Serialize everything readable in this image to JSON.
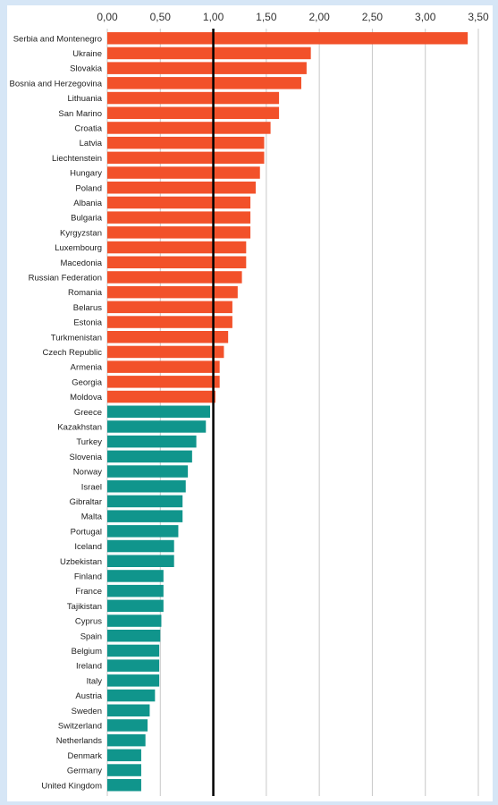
{
  "chart_data": {
    "type": "bar",
    "orientation": "horizontal",
    "title": "",
    "xlabel": "",
    "ylabel": "",
    "xlim": [
      0,
      3.5
    ],
    "x_ticks": [
      "0,00",
      "0,50",
      "1,00",
      "1,50",
      "2,00",
      "2,50",
      "3,00",
      "3,50"
    ],
    "x_axis_position": "top",
    "grid": true,
    "reference_line": 1.0,
    "colors": {
      "above_reference": "#f2512a",
      "below_reference": "#10958c",
      "reference_line": "#000000"
    },
    "categories": [
      "Serbia and Montenegro",
      "Ukraine",
      "Slovakia",
      "Bosnia and Herzegovina",
      "Lithuania",
      "San Marino",
      "Croatia",
      "Latvia",
      "Liechtenstein",
      "Hungary",
      "Poland",
      "Albania",
      "Bulgaria",
      "Kyrgyzstan",
      "Luxembourg",
      "Macedonia",
      "Russian Federation",
      "Romania",
      "Belarus",
      "Estonia",
      "Turkmenistan",
      "Czech Republic",
      "Armenia",
      "Georgia",
      "Moldova",
      "Greece",
      "Kazakhstan",
      "Turkey",
      "Slovenia",
      "Norway",
      "Israel",
      "Gibraltar",
      "Malta",
      "Portugal",
      "Iceland",
      "Uzbekistan",
      "Finland",
      "France",
      "Tajikistan",
      "Cyprus",
      "Spain",
      "Belgium",
      "Ireland",
      "Italy",
      "Austria",
      "Sweden",
      "Switzerland",
      "Netherlands",
      "Denmark",
      "Germany",
      "United Kingdom"
    ],
    "values": [
      3.4,
      1.92,
      1.88,
      1.83,
      1.62,
      1.62,
      1.54,
      1.48,
      1.48,
      1.44,
      1.4,
      1.35,
      1.35,
      1.35,
      1.31,
      1.31,
      1.27,
      1.23,
      1.18,
      1.18,
      1.14,
      1.1,
      1.06,
      1.06,
      1.02,
      0.97,
      0.93,
      0.84,
      0.8,
      0.76,
      0.74,
      0.71,
      0.71,
      0.67,
      0.63,
      0.63,
      0.53,
      0.53,
      0.53,
      0.51,
      0.5,
      0.49,
      0.49,
      0.49,
      0.45,
      0.4,
      0.38,
      0.36,
      0.32,
      0.32,
      0.32
    ]
  }
}
